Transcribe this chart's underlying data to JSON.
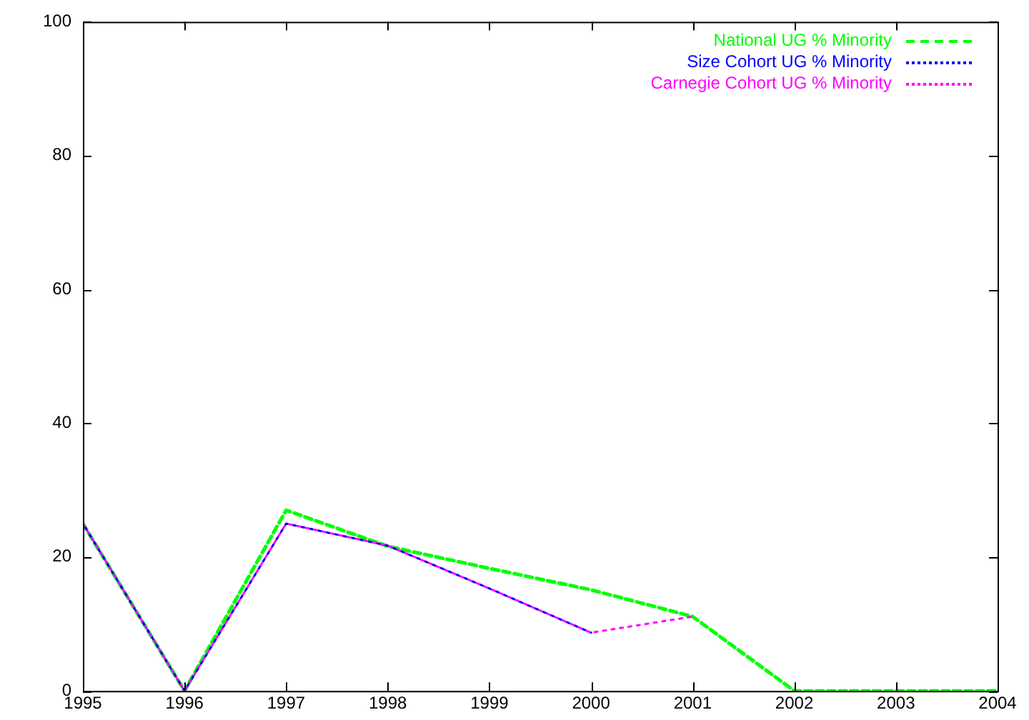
{
  "chart_data": {
    "type": "line",
    "x": [
      1995,
      1996,
      1997,
      1998,
      1999,
      2000,
      2001,
      2002,
      2003,
      2004
    ],
    "series": [
      {
        "name": "National UG % Minority",
        "color": "#00ff00",
        "line_style": "dashed",
        "values": [
          25,
          0,
          27,
          21.6,
          18.3,
          15.1,
          11.1,
          0,
          0,
          0
        ]
      },
      {
        "name": "Size Cohort UG % Minority",
        "color": "#0000ff",
        "line_style": "dotted",
        "values": [
          25,
          0,
          25,
          21.7,
          15.3,
          8.7,
          null,
          null,
          null,
          null
        ]
      },
      {
        "name": "Carnegie Cohort UG % Minority",
        "color": "#ff00ff",
        "line_style": "dotted",
        "values": [
          25,
          0,
          25,
          21.7,
          15.3,
          8.7,
          11.1,
          null,
          null,
          null
        ]
      }
    ],
    "xlim": [
      1995,
      2004
    ],
    "xticks": [
      1995,
      1996,
      1997,
      1998,
      1999,
      2000,
      2001,
      2002,
      2003,
      2004
    ],
    "ylim": [
      0,
      100
    ],
    "yticks": [
      0,
      20,
      40,
      60,
      80,
      100
    ],
    "grid": false,
    "legend": "top right",
    "marker": "none"
  }
}
